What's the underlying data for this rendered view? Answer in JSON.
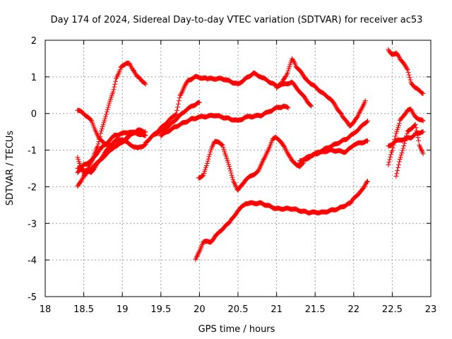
{
  "chart_data": {
    "type": "scatter",
    "title": "Day 174 of 2024, Sidereal Day-to-day VTEC variation (SDTVAR) for receiver ac53",
    "xlabel": "GPS time / hours",
    "ylabel": "SDTVAR / TECUs",
    "xlim": [
      18,
      23
    ],
    "ylim": [
      -5,
      2
    ],
    "xticks": [
      "18",
      "18.5",
      "19",
      "19.5",
      "20",
      "20.5",
      "21",
      "21.5",
      "22",
      "22.5",
      "23"
    ],
    "yticks": [
      "-5",
      "-4",
      "-3",
      "-2",
      "-1",
      "0",
      "1",
      "2"
    ],
    "grid": true,
    "marker": "plus",
    "color": "#ff0000",
    "series": [
      {
        "x": [
          18.42,
          18.47,
          18.52,
          18.6,
          18.68,
          18.72,
          18.8,
          18.88,
          18.92,
          18.98,
          19.05,
          19.1,
          19.15,
          19.2,
          19.25,
          19.3
        ],
        "y": [
          -1.2,
          -1.5,
          -1.7,
          -1.3,
          -0.9,
          -0.55,
          0.05,
          0.6,
          0.95,
          1.25,
          1.38,
          1.35,
          1.15,
          1.0,
          0.9,
          0.8
        ]
      },
      {
        "x": [
          18.42,
          18.5,
          18.6,
          18.7,
          18.8,
          18.9,
          19.0,
          19.1,
          19.15,
          19.25,
          19.3
        ],
        "y": [
          0.1,
          0.0,
          -0.2,
          -0.7,
          -0.85,
          -0.9,
          -0.8,
          -0.6,
          -0.5,
          -0.55,
          -0.6
        ]
      },
      {
        "x": [
          18.42,
          18.5,
          18.6,
          18.7,
          18.8,
          18.9,
          19.0,
          19.1,
          19.2,
          19.3
        ],
        "y": [
          -2.0,
          -1.7,
          -1.5,
          -1.3,
          -1.0,
          -0.75,
          -0.7,
          -0.85,
          -0.95,
          -0.85
        ]
      },
      {
        "x": [
          18.42,
          18.5,
          18.6,
          18.7,
          18.8,
          18.9,
          19.0,
          19.1,
          19.2,
          19.3
        ],
        "y": [
          -1.6,
          -1.4,
          -1.3,
          -1.0,
          -0.8,
          -0.6,
          -0.55,
          -0.5,
          -0.55,
          -0.6
        ]
      },
      {
        "x": [
          18.42,
          18.5,
          18.6,
          18.7,
          18.8,
          18.9,
          19.0,
          19.1,
          19.2,
          19.3
        ],
        "y": [
          -1.5,
          -1.55,
          -1.6,
          -1.3,
          -1.1,
          -0.9,
          -0.75,
          -0.6,
          -0.45,
          -0.5
        ]
      },
      {
        "x": [
          19.3,
          19.5,
          19.7,
          19.75,
          19.85,
          19.95,
          20.1,
          20.3,
          20.5,
          20.7,
          20.8,
          21.0,
          21.1,
          21.2,
          21.3,
          21.45
        ],
        "y": [
          -0.8,
          -0.4,
          0.0,
          0.5,
          0.9,
          1.0,
          0.95,
          0.95,
          0.8,
          1.1,
          1.0,
          0.75,
          0.8,
          0.85,
          0.6,
          0.2
        ]
      },
      {
        "x": [
          19.5,
          19.7,
          19.9,
          20.0,
          20.2,
          20.4,
          20.5,
          20.6,
          20.8,
          20.9,
          21.0,
          21.1,
          21.15
        ],
        "y": [
          -0.6,
          -0.35,
          -0.15,
          -0.1,
          -0.05,
          -0.15,
          -0.2,
          -0.1,
          -0.05,
          0.05,
          0.15,
          0.2,
          0.15
        ]
      },
      {
        "x": [
          19.4,
          19.6,
          19.8,
          19.9,
          20.0
        ],
        "y": [
          -0.6,
          -0.35,
          0.05,
          0.2,
          0.3
        ]
      },
      {
        "x": [
          19.99,
          20.05,
          20.15,
          20.2,
          20.3,
          20.45,
          20.5,
          20.6,
          20.75,
          20.85,
          20.95,
          21.0,
          21.1,
          21.2,
          21.3,
          21.35
        ],
        "y": [
          -1.75,
          -1.7,
          -1.0,
          -0.75,
          -0.85,
          -1.9,
          -2.1,
          -1.8,
          -1.6,
          -1.2,
          -0.7,
          -0.65,
          -0.9,
          -1.3,
          -1.45,
          -1.35
        ]
      },
      {
        "x": [
          21.0,
          21.05,
          21.1,
          21.15,
          21.2,
          21.25,
          21.4,
          21.6,
          21.7,
          21.85,
          21.95,
          22.05,
          22.15
        ],
        "y": [
          0.7,
          0.8,
          0.95,
          1.15,
          1.5,
          1.3,
          0.9,
          0.55,
          0.4,
          -0.05,
          -0.35,
          -0.1,
          0.35
        ]
      },
      {
        "x": [
          21.3,
          21.5,
          21.7,
          21.9,
          22.0,
          22.18
        ],
        "y": [
          -1.3,
          -1.1,
          -0.9,
          -0.7,
          -0.55,
          -0.2
        ]
      },
      {
        "x": [
          21.3,
          21.5,
          21.7,
          21.9,
          22.0,
          22.18
        ],
        "y": [
          -1.35,
          -1.1,
          -1.0,
          -1.05,
          -0.85,
          -0.75
        ]
      },
      {
        "x": [
          19.95,
          20.05,
          20.15,
          20.25,
          20.4,
          20.5,
          20.6,
          20.8,
          21.0,
          21.2,
          21.4,
          21.6,
          21.8,
          21.95,
          22.1,
          22.18
        ],
        "y": [
          -4.0,
          -3.5,
          -3.5,
          -3.25,
          -2.95,
          -2.65,
          -2.45,
          -2.45,
          -2.6,
          -2.6,
          -2.7,
          -2.7,
          -2.6,
          -2.45,
          -2.1,
          -1.85
        ]
      },
      {
        "x": [
          22.45,
          22.5,
          22.55,
          22.6,
          22.7,
          22.75,
          22.8,
          22.9
        ],
        "y": [
          1.75,
          1.6,
          1.65,
          1.5,
          1.2,
          0.8,
          0.7,
          0.55
        ]
      },
      {
        "x": [
          22.45,
          22.5,
          22.55,
          22.6,
          22.7,
          22.75,
          22.8,
          22.9
        ],
        "y": [
          -1.4,
          -1.0,
          -0.55,
          -0.2,
          0.1,
          0.1,
          -0.1,
          -0.2
        ]
      },
      {
        "x": [
          22.45,
          22.55,
          22.65,
          22.75,
          22.8,
          22.9
        ],
        "y": [
          -0.9,
          -0.75,
          -0.7,
          -0.65,
          -0.55,
          -0.5
        ]
      },
      {
        "x": [
          22.55,
          22.6,
          22.7,
          22.8,
          22.85,
          22.9
        ],
        "y": [
          -1.7,
          -1.25,
          -0.5,
          -0.3,
          -0.85,
          -1.1
        ]
      }
    ]
  }
}
